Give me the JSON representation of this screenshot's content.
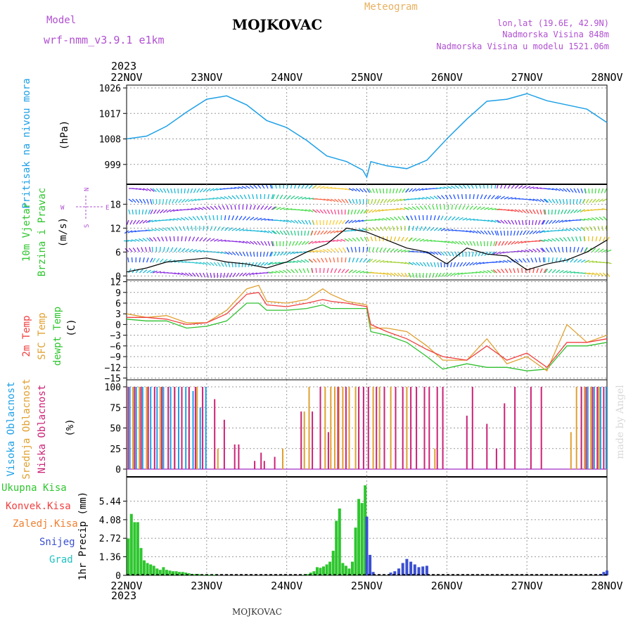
{
  "header": {
    "model_label": "Model",
    "model_name": "wrf-nmm_v3.9.1 e1km",
    "station": "MOJKOVAC",
    "title": "Meteogram",
    "lonlat": "lon,lat (19.6E, 42.9N)",
    "elevation": "Nadmorska Visina 848m",
    "model_elevation": "Nadmorska Visina u modelu 1521.06m"
  },
  "footer": {
    "station": "MOJKOVAC",
    "credit": "made by Angel"
  },
  "colors": {
    "pressure": "#1ea0e6",
    "t2m": "#f04040",
    "sfc": "#e0a030",
    "dew": "#30c030",
    "high_cloud": "#1ea0e6",
    "mid_cloud": "#e0a030",
    "low_cloud": "#cc2277",
    "total_precip": "#2ec62e",
    "snow": "#3a4fd0",
    "purple": "#b050d0"
  },
  "chart_data": [
    {
      "type": "line",
      "panel": "pressure",
      "ylabel": [
        "Pritisak na nivou mora",
        "(hPa)"
      ],
      "year_label": "2023",
      "x_ticks": [
        "22NOV",
        "23NOV",
        "24NOV",
        "25NOV",
        "26NOV",
        "27NOV",
        "28NOV"
      ],
      "y_ticks": [
        999,
        1008,
        1017,
        1026
      ],
      "ylim": [
        992,
        1027
      ],
      "x": [
        0,
        0.25,
        0.5,
        0.75,
        1.0,
        1.25,
        1.5,
        1.75,
        2.0,
        2.25,
        2.5,
        2.75,
        2.95,
        3.0,
        3.05,
        3.25,
        3.5,
        3.75,
        4.0,
        4.25,
        4.5,
        4.75,
        5.0,
        5.25,
        5.5,
        5.75,
        6.0
      ],
      "values": [
        1008,
        1009,
        1012.5,
        1017.5,
        1022,
        1023.2,
        1020,
        1014.5,
        1012,
        1007.5,
        1002,
        1000,
        997,
        994.5,
        1000,
        998.5,
        997.5,
        1000.5,
        1008,
        1015,
        1021.3,
        1022,
        1024,
        1021.5,
        1020,
        1018.5,
        1013.8
      ],
      "grid": true
    },
    {
      "type": "line",
      "panel": "wind",
      "ylabel": [
        "10m Vjetar",
        "Brzina i Pravac",
        "(m/s)"
      ],
      "compass": {
        "n": "N",
        "s": "S",
        "e": "E",
        "w": "W"
      },
      "y_ticks": [
        0,
        6,
        12,
        18
      ],
      "ylim": [
        -1,
        23
      ],
      "x": [
        0,
        0.25,
        0.5,
        0.75,
        1.0,
        1.25,
        1.5,
        1.75,
        2.0,
        2.25,
        2.5,
        2.75,
        3.0,
        3.25,
        3.5,
        3.75,
        4.0,
        4.25,
        4.5,
        4.75,
        5.0,
        5.25,
        5.5,
        5.75,
        6.0
      ],
      "values": [
        1,
        2,
        3.5,
        4,
        4.5,
        3.5,
        3,
        2,
        3.5,
        6,
        8,
        12,
        11,
        9,
        7,
        6,
        3,
        7,
        5.5,
        5,
        1.5,
        3,
        4,
        6,
        9
      ],
      "grid": true
    },
    {
      "type": "line",
      "panel": "temperature",
      "ylabel": [
        "2m Temp",
        "SFC Temp",
        "dewpt Temp",
        "(C)"
      ],
      "y_ticks": [
        12,
        9,
        6,
        3,
        0,
        -3,
        -6,
        -9,
        -12,
        -15
      ],
      "ylim": [
        -15.5,
        12.5
      ],
      "x": [
        0,
        0.25,
        0.5,
        0.75,
        1.0,
        1.25,
        1.5,
        1.65,
        1.75,
        2.0,
        2.25,
        2.45,
        2.55,
        2.75,
        3.0,
        3.05,
        3.25,
        3.5,
        3.75,
        3.95,
        4.25,
        4.5,
        4.75,
        5.0,
        5.25,
        5.5,
        5.75,
        6.0
      ],
      "series": [
        {
          "name": "2m Temp",
          "values": [
            2,
            2,
            1.5,
            0,
            0.5,
            3,
            8.5,
            9,
            5.5,
            5,
            6,
            7,
            6.5,
            6,
            5,
            0,
            -2,
            -4,
            -7,
            -9,
            -10,
            -6,
            -10,
            -8,
            -12,
            -5,
            -5,
            -4
          ]
        },
        {
          "name": "SFC Temp",
          "values": [
            3,
            2,
            2.5,
            0.5,
            0.5,
            4,
            10,
            11,
            6.5,
            6,
            7,
            10,
            8.5,
            6.5,
            5.5,
            -1,
            -1,
            -2,
            -6,
            -10,
            -10,
            -4,
            -11,
            -9,
            -13,
            0,
            -5,
            -3
          ]
        },
        {
          "name": "dewpt Temp",
          "values": [
            1.5,
            1,
            1,
            -1,
            -0.5,
            1,
            6,
            6,
            4,
            4,
            4.5,
            5.5,
            4.5,
            4.5,
            4.5,
            -2,
            -3,
            -5,
            -9,
            -12.5,
            -11,
            -12,
            -12,
            -13,
            -12.5,
            -6,
            -6,
            -5
          ]
        }
      ],
      "grid": true
    },
    {
      "type": "bar",
      "panel": "clouds",
      "ylabel": [
        "Visoka Oblacnost",
        "Srednja Oblacnost",
        "Niska Oblacnost",
        "(%)"
      ],
      "y_ticks": [
        0,
        25,
        50,
        75,
        100
      ],
      "ylim": [
        0,
        100
      ],
      "series": [
        {
          "name": "Visoka Oblacnost",
          "x": [
            0.04,
            0.12,
            0.2,
            0.3,
            0.38,
            0.46,
            0.55,
            0.65,
            0.74,
            0.83,
            0.92,
            0.99,
            5.68,
            5.76,
            5.84,
            5.92,
            5.99
          ],
          "values": [
            100,
            100,
            100,
            100,
            100,
            100,
            100,
            100,
            100,
            95,
            75,
            100,
            100,
            100,
            100,
            100,
            100
          ]
        },
        {
          "name": "Srednja Oblacnost",
          "x": [
            0.08,
            0.16,
            0.25,
            0.42,
            0.6,
            0.78,
            0.88,
            1.14,
            1.95,
            2.22,
            2.28,
            2.48,
            2.55,
            2.6,
            2.65,
            2.7,
            2.78,
            2.86,
            3.08,
            3.16,
            3.3,
            3.5,
            3.85,
            5.55,
            5.62,
            5.72,
            5.8,
            5.9
          ],
          "values": [
            100,
            100,
            100,
            100,
            100,
            100,
            100,
            25,
            25,
            70,
            100,
            100,
            100,
            100,
            100,
            100,
            100,
            100,
            100,
            100,
            100,
            100,
            25,
            45,
            100,
            100,
            100,
            100
          ]
        },
        {
          "name": "Niska Oblacnost",
          "x": [
            0.02,
            0.1,
            0.18,
            0.27,
            0.35,
            0.44,
            0.52,
            0.6,
            0.69,
            0.78,
            0.86,
            0.95,
            1.1,
            1.22,
            1.35,
            1.4,
            1.6,
            1.68,
            1.72,
            1.85,
            2.18,
            2.32,
            2.42,
            2.52,
            2.64,
            2.74,
            2.9,
            2.96,
            3.02,
            3.12,
            3.22,
            3.36,
            3.45,
            3.55,
            3.62,
            3.72,
            3.78,
            3.88,
            3.95,
            4.25,
            4.32,
            4.5,
            4.62,
            4.72,
            4.85,
            5.05,
            5.18,
            5.68,
            5.74,
            5.82,
            5.88,
            5.96
          ],
          "values": [
            100,
            100,
            100,
            100,
            100,
            100,
            100,
            100,
            100,
            100,
            100,
            100,
            85,
            60,
            30,
            30,
            10,
            20,
            10,
            15,
            70,
            70,
            100,
            45,
            100,
            100,
            100,
            100,
            100,
            100,
            100,
            100,
            100,
            100,
            100,
            100,
            100,
            100,
            100,
            65,
            100,
            55,
            25,
            80,
            100,
            100,
            100,
            100,
            100,
            100,
            100,
            100
          ]
        }
      ],
      "grid": true
    },
    {
      "type": "bar",
      "panel": "precip",
      "ylabel": [
        "1hr Precip (mm)"
      ],
      "legend": [
        "Ukupna Kisa",
        "Konvek.Kisa",
        "Zaledj.Kisa",
        "Snijeg",
        "Grad"
      ],
      "legend_colors": [
        "#2ec62e",
        "#f04040",
        "#f08030",
        "#3a4fd0",
        "#20c0c0"
      ],
      "y_ticks": [
        0,
        1.36,
        2.72,
        4.08,
        5.44
      ],
      "ylim": [
        0,
        6.6
      ],
      "x_ticks": [
        "22NOV",
        "23NOV",
        "24NOV",
        "25NOV",
        "26NOV",
        "27NOV",
        "28NOV"
      ],
      "year_label": "2023",
      "series": [
        {
          "name": "Ukupna Kisa",
          "x": [
            0.02,
            0.06,
            0.1,
            0.14,
            0.18,
            0.22,
            0.26,
            0.3,
            0.34,
            0.38,
            0.42,
            0.46,
            0.5,
            0.54,
            0.58,
            0.62,
            0.66,
            0.7,
            0.74,
            0.78,
            0.82,
            0.86,
            0.9,
            0.94,
            0.98,
            1.02,
            1.06,
            1.1,
            2.22,
            2.26,
            2.3,
            2.34,
            2.38,
            2.42,
            2.46,
            2.5,
            2.54,
            2.58,
            2.62,
            2.66,
            2.7,
            2.74,
            2.78,
            2.82,
            2.86,
            2.9,
            2.94,
            2.98
          ],
          "values": [
            2.7,
            4.5,
            3.9,
            3.9,
            2.0,
            1.1,
            0.9,
            0.8,
            0.7,
            0.5,
            0.4,
            0.6,
            0.4,
            0.35,
            0.3,
            0.3,
            0.25,
            0.25,
            0.2,
            0.15,
            0.1,
            0.1,
            0.1,
            0.05,
            0.05,
            0.05,
            0.05,
            0.05,
            0.05,
            0.1,
            0.2,
            0.3,
            0.6,
            0.55,
            0.65,
            0.8,
            1.0,
            1.8,
            4.0,
            4.9,
            0.9,
            0.7,
            0.5,
            1.0,
            3.5,
            5.6,
            5.3,
            6.6
          ]
        },
        {
          "name": "Snijeg",
          "x": [
            3.0,
            3.04,
            3.08,
            3.3,
            3.35,
            3.4,
            3.45,
            3.5,
            3.55,
            3.6,
            3.65,
            3.7,
            3.75,
            5.92,
            5.96,
            6.0
          ],
          "values": [
            4.3,
            1.5,
            0.25,
            0.2,
            0.3,
            0.5,
            0.9,
            1.2,
            1.0,
            0.8,
            0.6,
            0.65,
            0.7,
            0.1,
            0.25,
            0.35
          ]
        }
      ],
      "grid": true
    }
  ]
}
